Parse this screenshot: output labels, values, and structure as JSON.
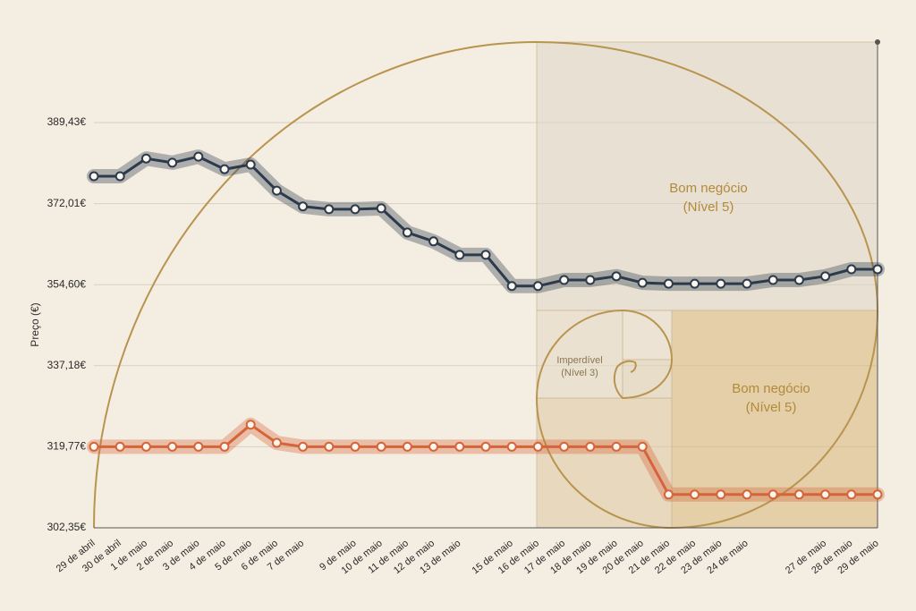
{
  "chart_data": {
    "type": "line",
    "y_label": "Preço (€)",
    "categories": [
      "29 de abril",
      "30 de abril",
      "1 de maio",
      "2 de maio",
      "3 de maio",
      "4 de maio",
      "5 de maio",
      "6 de maio",
      "7 de maio",
      null,
      "9 de maio",
      "10 de maio",
      "11 de maio",
      "12 de maio",
      "13 de maio",
      null,
      "15 de maio",
      "16 de maio",
      "17 de maio",
      "18 de maio",
      "19 de maio",
      "20 de maio",
      "21 de maio",
      "22 de maio",
      "23 de maio",
      "24 de maio",
      null,
      null,
      "27 de maio",
      "28 de maio",
      "29 de maio"
    ],
    "series": [
      {
        "color": "#2b3a4c",
        "values": [
          377.9,
          377.9,
          381.7,
          380.8,
          382.1,
          379.4,
          380.4,
          374.8,
          371.4,
          370.8,
          370.8,
          371.0,
          365.8,
          363.9,
          361.0,
          361.0,
          354.3,
          354.3,
          355.6,
          355.6,
          356.4,
          355.0,
          354.8,
          354.8,
          354.8,
          354.8,
          355.6,
          355.6,
          356.4,
          357.9,
          357.9
        ]
      },
      {
        "color": "#d4643a",
        "values": [
          319.77,
          319.77,
          319.77,
          319.77,
          319.77,
          319.77,
          324.5,
          320.6,
          319.77,
          319.77,
          319.77,
          319.77,
          319.77,
          319.77,
          319.77,
          319.77,
          319.77,
          319.77,
          319.77,
          319.77,
          319.77,
          319.77,
          309.5,
          309.5,
          309.5,
          309.5,
          309.5,
          309.5,
          309.5,
          309.5,
          309.5
        ]
      }
    ],
    "ylim": [
      302.35,
      389.43
    ],
    "yticks": [
      {
        "value": 302.35,
        "label": "302,35€"
      },
      {
        "value": 319.77,
        "label": "319,77€"
      },
      {
        "value": 337.18,
        "label": "337,18€"
      },
      {
        "value": 354.6,
        "label": "354,60€"
      },
      {
        "value": 372.01,
        "label": "372,01€"
      },
      {
        "value": 389.43,
        "label": "389,43€"
      }
    ],
    "grid": true,
    "annotations": [
      {
        "text": "Bom negócio",
        "sub": "(Nível 5)"
      },
      {
        "text": "Imperdível",
        "sub": "(Nível 3)"
      },
      {
        "text": "Bom negócio",
        "sub": "(Nível 5)"
      }
    ]
  }
}
